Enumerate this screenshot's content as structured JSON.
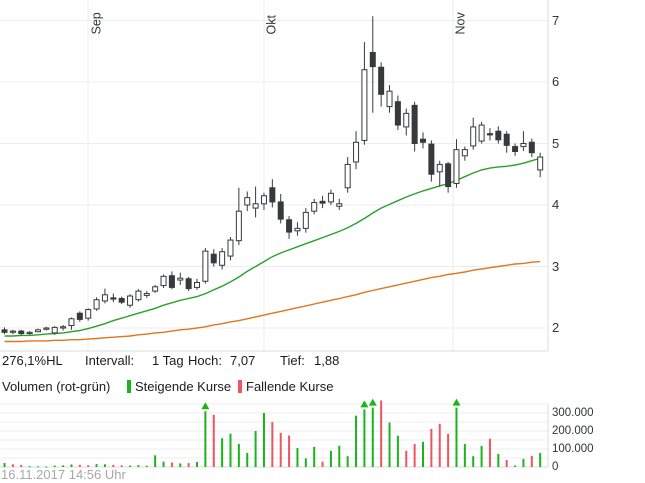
{
  "header": {
    "change_pct": "276,1%HL",
    "interval_label": "Intervall:",
    "interval_value": "1 Tag",
    "high_label": "Hoch:",
    "high_value": "7,07",
    "low_label": "Tief:",
    "low_value": "1,88"
  },
  "legend": {
    "title": "Volumen (rot-grün)",
    "rising_label": "Steigende Kurse",
    "falling_label": "Fallende Kurse"
  },
  "footer": {
    "timestamp": "16.11.2017 14:56 Uhr"
  },
  "colors": {
    "up_volume": "#1cb41c",
    "down_volume": "#ee5461",
    "candle_line": "#37393c",
    "candle_fill_up": "#ffffff",
    "candle_fill_down": "#37393c",
    "ma_fast": "#2aa12a",
    "ma_slow": "#e2761b",
    "grid": "#ececec",
    "border": "#dcdcdc",
    "arrow": "#1cb41c"
  },
  "price_axis": {
    "tick_labels": [
      "7",
      "6",
      "5",
      "4",
      "3",
      "2"
    ],
    "tick_values": [
      7,
      6,
      5,
      4,
      3,
      2
    ]
  },
  "volume_axis": {
    "tick_labels": [
      "300.000",
      "200.000",
      "100.000",
      "0"
    ],
    "tick_values_k": [
      300,
      200,
      100,
      0
    ]
  },
  "chart_data": {
    "type": "candlestick",
    "subcharts": [
      "price-with-moving-averages",
      "volume"
    ],
    "interval": "1 Tag",
    "high": 7.07,
    "low": 1.88,
    "change_high_low_pct": "276,1%HL",
    "months": [
      {
        "label": "Sep",
        "pos": 9.98
      },
      {
        "label": "Okt",
        "pos": 31.0
      },
      {
        "label": "Nov",
        "pos": 53.58
      }
    ],
    "price_ylim": [
      1.7,
      7.33
    ],
    "volume_ylim_k": [
      0,
      370
    ],
    "volume_grid_step_k": 50,
    "arrow_indices": [
      24,
      43,
      44,
      54
    ],
    "candles_note": "each entry = [open, high, low, close, volume_in_thousands, volume_color g/r]",
    "candles": [
      [
        1.97,
        2.01,
        1.9,
        1.93,
        22,
        "g"
      ],
      [
        1.93,
        1.97,
        1.9,
        1.95,
        15,
        "r"
      ],
      [
        1.95,
        1.97,
        1.88,
        1.91,
        12,
        "r"
      ],
      [
        1.91,
        1.95,
        1.89,
        1.93,
        5,
        "g"
      ],
      [
        1.94,
        1.99,
        1.93,
        1.97,
        4,
        "g"
      ],
      [
        1.98,
        2.02,
        1.96,
        2.0,
        3,
        "g"
      ],
      [
        1.92,
        2.03,
        1.89,
        2.01,
        8,
        "g"
      ],
      [
        2.0,
        2.05,
        1.96,
        2.02,
        9,
        "g"
      ],
      [
        2.04,
        2.17,
        1.97,
        2.15,
        14,
        "g"
      ],
      [
        2.24,
        2.27,
        2.1,
        2.14,
        12,
        "r"
      ],
      [
        2.16,
        2.32,
        2.12,
        2.3,
        10,
        "r"
      ],
      [
        2.31,
        2.5,
        2.28,
        2.46,
        16,
        "g"
      ],
      [
        2.44,
        2.64,
        2.4,
        2.54,
        15,
        "g"
      ],
      [
        2.49,
        2.56,
        2.42,
        2.47,
        12,
        "r"
      ],
      [
        2.48,
        2.51,
        2.39,
        2.42,
        9,
        "r"
      ],
      [
        2.37,
        2.55,
        2.33,
        2.52,
        8,
        "g"
      ],
      [
        2.46,
        2.63,
        2.43,
        2.6,
        10,
        "g"
      ],
      [
        2.53,
        2.6,
        2.49,
        2.56,
        7,
        "g"
      ],
      [
        2.6,
        2.7,
        2.57,
        2.67,
        65,
        "g"
      ],
      [
        2.69,
        2.87,
        2.65,
        2.84,
        30,
        "g"
      ],
      [
        2.85,
        2.92,
        2.63,
        2.66,
        25,
        "r"
      ],
      [
        2.78,
        2.9,
        2.7,
        2.81,
        20,
        "g"
      ],
      [
        2.8,
        2.83,
        2.6,
        2.64,
        22,
        "r"
      ],
      [
        2.66,
        2.8,
        2.62,
        2.74,
        28,
        "g"
      ],
      [
        2.76,
        3.3,
        2.72,
        3.25,
        310,
        "g"
      ],
      [
        3.2,
        3.28,
        3.0,
        3.06,
        290,
        "r"
      ],
      [
        3.02,
        3.3,
        2.95,
        3.24,
        160,
        "g"
      ],
      [
        3.17,
        3.48,
        3.1,
        3.43,
        185,
        "g"
      ],
      [
        3.42,
        4.28,
        3.35,
        3.9,
        128,
        "g"
      ],
      [
        4.0,
        4.22,
        3.9,
        4.12,
        78,
        "g"
      ],
      [
        3.95,
        4.3,
        3.8,
        4.02,
        200,
        "g"
      ],
      [
        4.02,
        4.2,
        3.92,
        4.15,
        300,
        "g"
      ],
      [
        4.28,
        4.42,
        3.96,
        4.05,
        250,
        "r"
      ],
      [
        4.05,
        4.18,
        3.7,
        3.77,
        190,
        "r"
      ],
      [
        3.76,
        3.82,
        3.45,
        3.56,
        175,
        "r"
      ],
      [
        3.58,
        3.72,
        3.5,
        3.62,
        105,
        "g"
      ],
      [
        3.62,
        3.95,
        3.55,
        3.88,
        48,
        "g"
      ],
      [
        3.9,
        4.1,
        3.85,
        4.04,
        112,
        "g"
      ],
      [
        4.06,
        4.15,
        3.95,
        4.03,
        30,
        "r"
      ],
      [
        4.05,
        4.25,
        4.0,
        4.19,
        90,
        "g"
      ],
      [
        3.98,
        4.1,
        3.92,
        4.02,
        118,
        "g"
      ],
      [
        4.28,
        4.78,
        4.2,
        4.66,
        60,
        "g"
      ],
      [
        4.7,
        5.2,
        4.58,
        5.02,
        285,
        "g"
      ],
      [
        5.05,
        6.65,
        4.98,
        6.2,
        320,
        "g"
      ],
      [
        6.48,
        7.07,
        5.5,
        6.25,
        330,
        "g"
      ],
      [
        6.24,
        6.32,
        5.6,
        5.8,
        370,
        "r"
      ],
      [
        5.6,
        5.95,
        5.5,
        5.85,
        247,
        "g"
      ],
      [
        5.68,
        5.78,
        5.22,
        5.3,
        174,
        "g"
      ],
      [
        5.27,
        5.57,
        5.13,
        5.49,
        90,
        "r"
      ],
      [
        5.62,
        5.68,
        4.87,
        5.0,
        128,
        "r"
      ],
      [
        5.07,
        5.18,
        4.92,
        5.02,
        140,
        "g"
      ],
      [
        4.99,
        5.05,
        4.38,
        4.5,
        212,
        "r"
      ],
      [
        4.54,
        4.72,
        4.3,
        4.66,
        240,
        "r"
      ],
      [
        4.67,
        4.7,
        4.2,
        4.3,
        184,
        "r"
      ],
      [
        4.35,
        5.07,
        4.28,
        4.9,
        330,
        "g"
      ],
      [
        4.8,
        4.95,
        4.72,
        4.9,
        128,
        "g"
      ],
      [
        4.96,
        5.42,
        4.9,
        5.27,
        60,
        "g"
      ],
      [
        5.04,
        5.35,
        5.0,
        5.3,
        117,
        "g"
      ],
      [
        5.16,
        5.25,
        5.05,
        5.14,
        157,
        "r"
      ],
      [
        5.2,
        5.28,
        5.0,
        5.06,
        73,
        "g"
      ],
      [
        5.15,
        5.2,
        4.85,
        4.97,
        39,
        "r"
      ],
      [
        4.95,
        5.0,
        4.8,
        4.87,
        8,
        "g"
      ],
      [
        4.95,
        5.2,
        4.88,
        5.0,
        45,
        "g"
      ],
      [
        5.02,
        5.08,
        4.78,
        4.85,
        62,
        "r"
      ],
      [
        4.57,
        4.85,
        4.45,
        4.78,
        78,
        "g"
      ]
    ],
    "ma_fast": [
      1.87,
      1.87,
      1.88,
      1.88,
      1.89,
      1.9,
      1.91,
      1.92,
      1.94,
      1.96,
      1.99,
      2.03,
      2.07,
      2.12,
      2.16,
      2.2,
      2.24,
      2.28,
      2.32,
      2.37,
      2.41,
      2.45,
      2.48,
      2.51,
      2.56,
      2.62,
      2.68,
      2.75,
      2.83,
      2.92,
      3.0,
      3.08,
      3.16,
      3.22,
      3.27,
      3.32,
      3.37,
      3.42,
      3.47,
      3.52,
      3.57,
      3.63,
      3.7,
      3.78,
      3.87,
      3.95,
      4.01,
      4.07,
      4.13,
      4.18,
      4.23,
      4.27,
      4.31,
      4.35,
      4.4,
      4.46,
      4.52,
      4.57,
      4.6,
      4.62,
      4.63,
      4.65,
      4.68,
      4.72,
      4.76
    ],
    "ma_slow": [
      1.78,
      1.78,
      1.78,
      1.79,
      1.79,
      1.79,
      1.8,
      1.8,
      1.81,
      1.81,
      1.82,
      1.83,
      1.84,
      1.85,
      1.86,
      1.87,
      1.89,
      1.9,
      1.92,
      1.93,
      1.95,
      1.97,
      1.98,
      2.0,
      2.02,
      2.05,
      2.07,
      2.1,
      2.12,
      2.15,
      2.18,
      2.21,
      2.24,
      2.27,
      2.3,
      2.33,
      2.36,
      2.39,
      2.42,
      2.45,
      2.48,
      2.51,
      2.54,
      2.58,
      2.61,
      2.64,
      2.67,
      2.7,
      2.73,
      2.76,
      2.79,
      2.82,
      2.84,
      2.87,
      2.89,
      2.91,
      2.94,
      2.96,
      2.98,
      3.0,
      3.02,
      3.04,
      3.05,
      3.07,
      3.08
    ]
  }
}
